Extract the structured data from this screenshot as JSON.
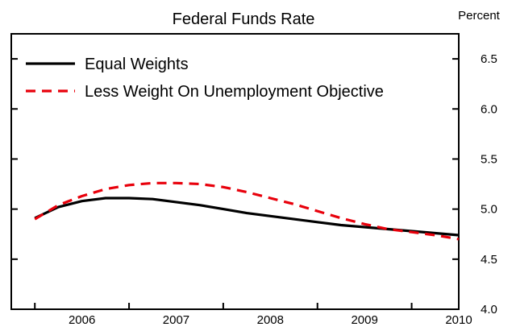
{
  "chart_data": {
    "type": "line",
    "title": "Federal Funds Rate",
    "ylabel": "Percent",
    "xlabel": "",
    "xlim": [
      2005.75,
      2010.5
    ],
    "ylim": [
      4.0,
      6.75
    ],
    "x_ticks": [
      2006,
      2007,
      2008,
      2009,
      2010
    ],
    "y_ticks": [
      4.0,
      4.5,
      5.0,
      5.5,
      6.0,
      6.5
    ],
    "y_tick_labels": [
      "4.0",
      "4.5",
      "5.0",
      "5.5",
      "6.0",
      "6.5"
    ],
    "grid": false,
    "legend_position": "top-left",
    "series": [
      {
        "name": "Equal Weights",
        "color": "#000000",
        "style": "solid",
        "x": [
          2006.0,
          2006.25,
          2006.5,
          2006.75,
          2007.0,
          2007.25,
          2007.5,
          2007.75,
          2008.0,
          2008.25,
          2008.5,
          2008.75,
          2009.0,
          2009.25,
          2009.5,
          2009.75,
          2010.0,
          2010.25,
          2010.5
        ],
        "y": [
          4.91,
          5.02,
          5.08,
          5.11,
          5.11,
          5.1,
          5.07,
          5.04,
          5.0,
          4.96,
          4.93,
          4.9,
          4.87,
          4.84,
          4.82,
          4.8,
          4.78,
          4.76,
          4.74
        ]
      },
      {
        "name": "Less Weight On Unemployment Objective",
        "color": "#e8000b",
        "style": "dashed",
        "x": [
          2006.0,
          2006.25,
          2006.5,
          2006.75,
          2007.0,
          2007.25,
          2007.5,
          2007.75,
          2008.0,
          2008.25,
          2008.5,
          2008.75,
          2009.0,
          2009.25,
          2009.5,
          2009.75,
          2010.0,
          2010.25,
          2010.5
        ],
        "y": [
          4.9,
          5.04,
          5.13,
          5.2,
          5.24,
          5.26,
          5.26,
          5.25,
          5.22,
          5.17,
          5.11,
          5.05,
          4.98,
          4.91,
          4.85,
          4.8,
          4.77,
          4.74,
          4.7
        ]
      }
    ]
  }
}
